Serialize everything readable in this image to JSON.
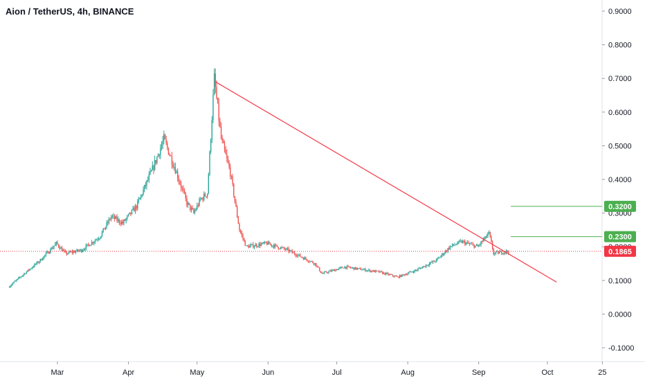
{
  "header": {
    "symbol": "Aion / TetherUS",
    "interval": "4h",
    "exchange": "BINANCE"
  },
  "colors": {
    "up": "#26a69a",
    "down": "#ef5350",
    "trendline": "#f23645",
    "resistance": "#4caf50",
    "current_price": "#f23645",
    "axis_text": "#131722",
    "axis_line": "#e0e3eb"
  },
  "chart_data": {
    "type": "candlestick",
    "title": "Aion / TetherUS, 4h, BINANCE",
    "y_ticks": [
      "0.9000",
      "0.8000",
      "0.7000",
      "0.6000",
      "0.5000",
      "0.4000",
      "0.3000",
      "0.2000",
      "0.1000",
      "0.0000",
      "-0.1000"
    ],
    "x_ticks": [
      "Mar",
      "Apr",
      "May",
      "Jun",
      "Jul",
      "Aug",
      "Sep",
      "Oct",
      "25"
    ],
    "ylim": [
      -0.13,
      0.93
    ],
    "grid": false,
    "price_path": [
      {
        "x": "Feb 08",
        "y": 0.08
      },
      {
        "x": "Feb 15",
        "y": 0.12
      },
      {
        "x": "Feb 22",
        "y": 0.16
      },
      {
        "x": "Mar 01",
        "y": 0.21
      },
      {
        "x": "Mar 05",
        "y": 0.18
      },
      {
        "x": "Mar 12",
        "y": 0.19
      },
      {
        "x": "Mar 20",
        "y": 0.23
      },
      {
        "x": "Mar 25",
        "y": 0.29
      },
      {
        "x": "Mar 30",
        "y": 0.27
      },
      {
        "x": "Apr 05",
        "y": 0.32
      },
      {
        "x": "Apr 12",
        "y": 0.43
      },
      {
        "x": "Apr 17",
        "y": 0.52
      },
      {
        "x": "Apr 22",
        "y": 0.43
      },
      {
        "x": "Apr 27",
        "y": 0.33
      },
      {
        "x": "Apr 30",
        "y": 0.3
      },
      {
        "x": "May 03",
        "y": 0.34
      },
      {
        "x": "May 06",
        "y": 0.36
      },
      {
        "x": "May 09",
        "y": 0.7
      },
      {
        "x": "May 12",
        "y": 0.52
      },
      {
        "x": "May 16",
        "y": 0.42
      },
      {
        "x": "May 20",
        "y": 0.25
      },
      {
        "x": "May 23",
        "y": 0.2
      },
      {
        "x": "Jun 01",
        "y": 0.21
      },
      {
        "x": "Jun 10",
        "y": 0.19
      },
      {
        "x": "Jun 22",
        "y": 0.15
      },
      {
        "x": "Jun 25",
        "y": 0.12
      },
      {
        "x": "Jul 05",
        "y": 0.14
      },
      {
        "x": "Jul 20",
        "y": 0.125
      },
      {
        "x": "Jul 28",
        "y": 0.11
      },
      {
        "x": "Aug 05",
        "y": 0.13
      },
      {
        "x": "Aug 14",
        "y": 0.16
      },
      {
        "x": "Aug 20",
        "y": 0.2
      },
      {
        "x": "Aug 25",
        "y": 0.215
      },
      {
        "x": "Sep 01",
        "y": 0.2
      },
      {
        "x": "Sep 06",
        "y": 0.24
      },
      {
        "x": "Sep 08",
        "y": 0.18
      },
      {
        "x": "Sep 14",
        "y": 0.186
      }
    ],
    "trendline": {
      "start": {
        "x": "May 09",
        "y": 0.69
      },
      "end": {
        "x": "Oct 05",
        "y": 0.095
      }
    },
    "horizontal_lines": [
      {
        "value": 0.32,
        "label": "0.3200",
        "from": "Sep 15"
      },
      {
        "value": 0.23,
        "label": "0.2300",
        "from": "Sep 15"
      }
    ],
    "current_price": {
      "value": 0.1865,
      "label": "0.1865"
    }
  }
}
